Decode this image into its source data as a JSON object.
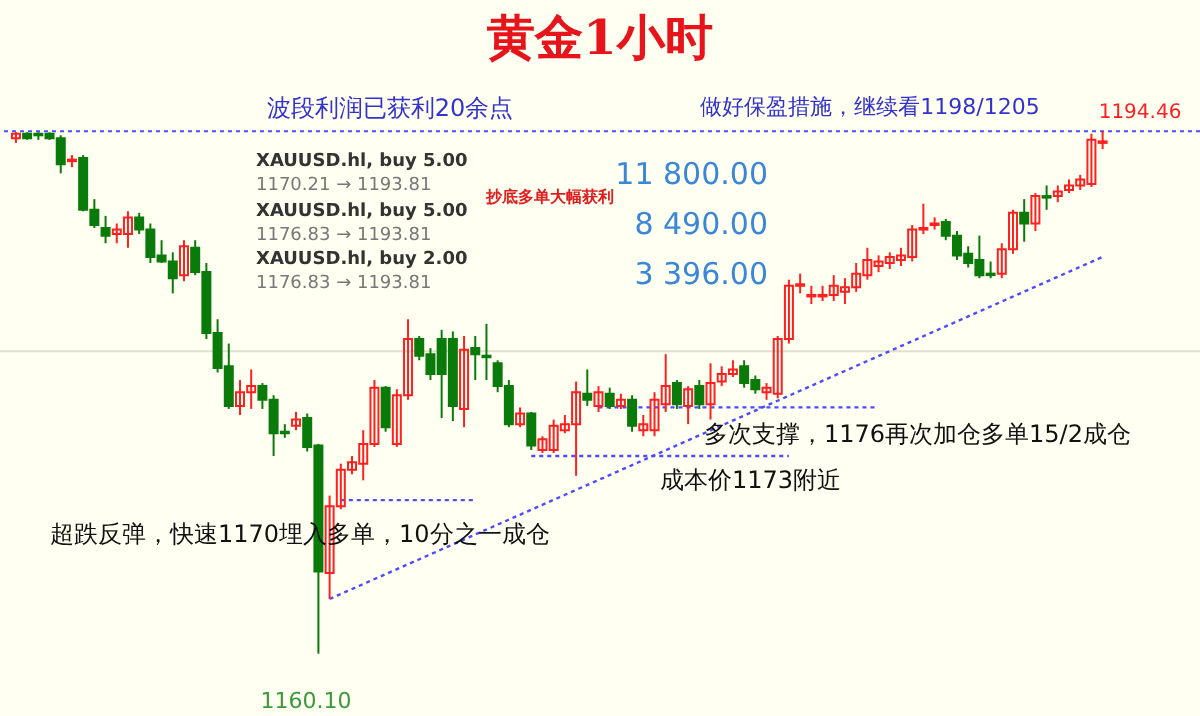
{
  "chart_data": {
    "type": "candlestick",
    "title": "黄金1小时",
    "categories": [
      null,
      null,
      null,
      null,
      null,
      null,
      null,
      null,
      null,
      null,
      null,
      null,
      null,
      null,
      null,
      null,
      null,
      null,
      null,
      null,
      null,
      null,
      null,
      null,
      null,
      null,
      null,
      null,
      null,
      null,
      null,
      null,
      null,
      null,
      null,
      null,
      null,
      null,
      null,
      null,
      null,
      null,
      null,
      null,
      null,
      null,
      null,
      null,
      null,
      null,
      null,
      null,
      null,
      null,
      null,
      null,
      null,
      null,
      null,
      null,
      null,
      null,
      null,
      null,
      null,
      null,
      null,
      null,
      null,
      null,
      null,
      null,
      null,
      null,
      null,
      null,
      null,
      null,
      null,
      null,
      null,
      null,
      null,
      null,
      null,
      null,
      null,
      null,
      null,
      null,
      null,
      null,
      null,
      null,
      null,
      null,
      null,
      null
    ],
    "ohlc": [
      [
        1194.0,
        1194.4,
        1193.7,
        1194.3
      ],
      [
        1194.3,
        1194.4,
        1193.9,
        1194.0
      ],
      [
        1194.3,
        1194.4,
        1193.9,
        1194.2
      ],
      [
        1194.3,
        1194.4,
        1193.9,
        1194.0
      ],
      [
        1194.0,
        1194.2,
        1191.7,
        1192.3
      ],
      [
        1192.5,
        1192.9,
        1192.1,
        1192.6
      ],
      [
        1192.7,
        1192.9,
        1189.2,
        1189.3
      ],
      [
        1189.3,
        1190.0,
        1188.1,
        1188.3
      ],
      [
        1188.1,
        1188.9,
        1187.1,
        1187.6
      ],
      [
        1187.7,
        1188.4,
        1187.1,
        1188.0
      ],
      [
        1187.7,
        1189.2,
        1186.8,
        1188.8
      ],
      [
        1188.8,
        1189.1,
        1187.7,
        1188.0
      ],
      [
        1188.0,
        1188.4,
        1185.8,
        1186.2
      ],
      [
        1186.3,
        1187.3,
        1185.8,
        1185.9
      ],
      [
        1185.9,
        1186.5,
        1183.8,
        1184.8
      ],
      [
        1185.0,
        1187.3,
        1184.6,
        1186.9
      ],
      [
        1186.8,
        1187.3,
        1185.0,
        1185.2
      ],
      [
        1185.2,
        1185.8,
        1180.8,
        1181.2
      ],
      [
        1181.2,
        1182.1,
        1178.6,
        1178.9
      ],
      [
        1179.0,
        1180.5,
        1176.2,
        1176.4
      ],
      [
        1176.4,
        1178.1,
        1175.8,
        1177.3
      ],
      [
        1177.3,
        1178.8,
        1176.2,
        1177.7
      ],
      [
        1177.7,
        1177.9,
        1176.2,
        1176.8
      ],
      [
        1176.8,
        1177.1,
        1173.1,
        1174.6
      ],
      [
        1174.7,
        1175.2,
        1174.3,
        1174.6
      ],
      [
        1175.1,
        1176.0,
        1174.8,
        1175.5
      ],
      [
        1175.6,
        1175.9,
        1173.4,
        1173.7
      ],
      [
        1173.8,
        1173.9,
        1160.1,
        1165.5
      ],
      [
        1165.4,
        1170.5,
        1163.7,
        1169.8
      ],
      [
        1169.8,
        1172.6,
        1169.6,
        1172.2
      ],
      [
        1172.2,
        1173.1,
        1171.9,
        1172.7
      ],
      [
        1172.6,
        1174.8,
        1171.5,
        1173.9
      ],
      [
        1173.9,
        1178.1,
        1173.7,
        1177.6
      ],
      [
        1177.6,
        1177.7,
        1174.7,
        1175.0
      ],
      [
        1173.9,
        1177.5,
        1173.7,
        1177.1
      ],
      [
        1177.1,
        1182.1,
        1176.8,
        1180.8
      ],
      [
        1180.8,
        1181.0,
        1179.4,
        1179.7
      ],
      [
        1179.8,
        1180.2,
        1178.1,
        1178.5
      ],
      [
        1180.8,
        1181.4,
        1175.6,
        1178.5
      ],
      [
        1180.8,
        1181.3,
        1175.4,
        1176.4
      ],
      [
        1176.2,
        1181.0,
        1175.0,
        1180.1
      ],
      [
        1180.2,
        1181.0,
        1178.1,
        1179.8
      ],
      [
        1179.7,
        1181.8,
        1178.1,
        1179.6
      ],
      [
        1179.2,
        1179.4,
        1177.3,
        1177.7
      ],
      [
        1177.7,
        1178.1,
        1175.0,
        1175.2
      ],
      [
        1175.2,
        1176.3,
        1175.0,
        1175.9
      ],
      [
        1175.9,
        1176.0,
        1173.5,
        1173.8
      ],
      [
        1173.5,
        1174.4,
        1173.3,
        1174.2
      ],
      [
        1173.5,
        1175.5,
        1173.3,
        1175.1
      ],
      [
        1174.8,
        1175.8,
        1174.6,
        1175.2
      ],
      [
        1175.2,
        1178.0,
        1171.8,
        1177.3
      ],
      [
        1177.2,
        1178.8,
        1176.4,
        1176.8
      ],
      [
        1176.4,
        1177.7,
        1176.0,
        1177.3
      ],
      [
        1177.2,
        1177.6,
        1176.2,
        1176.4
      ],
      [
        1176.4,
        1177.2,
        1176.2,
        1176.8
      ],
      [
        1176.8,
        1177.1,
        1174.7,
        1175.1
      ],
      [
        1174.8,
        1175.8,
        1174.4,
        1175.2
      ],
      [
        1174.8,
        1177.3,
        1174.4,
        1176.8
      ],
      [
        1176.5,
        1179.8,
        1176.0,
        1177.7
      ],
      [
        1177.9,
        1178.1,
        1176.2,
        1176.5
      ],
      [
        1176.4,
        1177.7,
        1175.2,
        1177.5
      ],
      [
        1177.7,
        1178.1,
        1176.2,
        1176.5
      ],
      [
        1176.5,
        1179.2,
        1175.5,
        1177.9
      ],
      [
        1178.0,
        1179.0,
        1177.7,
        1178.5
      ],
      [
        1178.5,
        1179.4,
        1178.3,
        1178.8
      ],
      [
        1179.0,
        1179.4,
        1177.6,
        1177.9
      ],
      [
        1178.1,
        1178.4,
        1177.2,
        1177.5
      ],
      [
        1177.3,
        1177.9,
        1176.8,
        1177.6
      ],
      [
        1177.2,
        1181.0,
        1176.9,
        1180.8
      ],
      [
        1180.8,
        1184.7,
        1180.5,
        1184.3
      ],
      [
        1184.3,
        1185.1,
        1183.8,
        1184.4
      ],
      [
        1183.6,
        1184.3,
        1183.1,
        1183.7
      ],
      [
        1183.6,
        1184.3,
        1183.3,
        1183.7
      ],
      [
        1183.7,
        1185.0,
        1183.3,
        1184.3
      ],
      [
        1183.9,
        1184.8,
        1183.1,
        1184.2
      ],
      [
        1184.2,
        1185.8,
        1183.9,
        1185.1
      ],
      [
        1185.0,
        1186.8,
        1184.7,
        1186.0
      ],
      [
        1185.6,
        1186.3,
        1185.2,
        1185.9
      ],
      [
        1185.8,
        1186.5,
        1185.4,
        1186.2
      ],
      [
        1186.0,
        1186.8,
        1185.6,
        1186.3
      ],
      [
        1186.2,
        1188.3,
        1185.9,
        1188.0
      ],
      [
        1188.0,
        1189.7,
        1187.7,
        1188.1
      ],
      [
        1188.3,
        1188.8,
        1188.0,
        1188.4
      ],
      [
        1188.5,
        1188.7,
        1187.3,
        1187.6
      ],
      [
        1187.6,
        1187.9,
        1186.0,
        1186.3
      ],
      [
        1186.4,
        1186.9,
        1185.5,
        1185.8
      ],
      [
        1186.0,
        1187.6,
        1184.8,
        1185.0
      ],
      [
        1185.1,
        1185.9,
        1184.8,
        1185.0
      ],
      [
        1185.1,
        1187.1,
        1184.8,
        1186.7
      ],
      [
        1186.7,
        1189.3,
        1186.4,
        1189.1
      ],
      [
        1189.1,
        1190.0,
        1187.2,
        1188.4
      ],
      [
        1188.4,
        1190.4,
        1187.9,
        1190.2
      ],
      [
        1190.2,
        1190.9,
        1189.3,
        1190.1
      ],
      [
        1190.2,
        1190.9,
        1189.8,
        1190.5
      ],
      [
        1190.6,
        1191.3,
        1190.4,
        1190.9
      ],
      [
        1190.9,
        1191.6,
        1190.6,
        1191.3
      ],
      [
        1191.0,
        1194.3,
        1190.8,
        1193.9
      ],
      [
        1193.7,
        1194.46,
        1193.3,
        1193.8
      ]
    ],
    "colors": [
      "#ff2020",
      "#0a7a0a",
      "#0a7a0a",
      "#0a7a0a",
      "#0a7a0a",
      "#ff2020",
      "#0a7a0a",
      "#0a7a0a",
      "#0a7a0a",
      "#ff2020",
      "#ff2020",
      "#0a7a0a",
      "#0a7a0a",
      "#0a7a0a",
      "#0a7a0a",
      "#ff2020",
      "#0a7a0a",
      "#0a7a0a",
      "#0a7a0a",
      "#0a7a0a",
      "#ff2020",
      "#ff2020",
      "#0a7a0a",
      "#0a7a0a",
      "#0a7a0a",
      "#ff2020",
      "#0a7a0a",
      "#0a7a0a",
      "#ff2020",
      "#ff2020",
      "#ff2020",
      "#ff2020",
      "#ff2020",
      "#0a7a0a",
      "#ff2020",
      "#ff2020",
      "#0a7a0a",
      "#0a7a0a",
      "#0a7a0a",
      "#0a7a0a",
      "#ff2020",
      "#0a7a0a",
      "#0a7a0a",
      "#0a7a0a",
      "#0a7a0a",
      "#ff2020",
      "#0a7a0a",
      "#ff2020",
      "#ff2020",
      "#ff2020",
      "#ff2020",
      "#0a7a0a",
      "#ff2020",
      "#0a7a0a",
      "#ff2020",
      "#0a7a0a",
      "#ff2020",
      "#ff2020",
      "#ff2020",
      "#0a7a0a",
      "#ff2020",
      "#0a7a0a",
      "#ff2020",
      "#ff2020",
      "#ff2020",
      "#0a7a0a",
      "#0a7a0a",
      "#ff2020",
      "#ff2020",
      "#ff2020",
      "#ff2020",
      "#ff2020",
      "#ff2020",
      "#ff2020",
      "#ff2020",
      "#ff2020",
      "#ff2020",
      "#ff2020",
      "#ff2020",
      "#ff2020",
      "#ff2020",
      "#ff2020",
      "#ff2020",
      "#0a7a0a",
      "#0a7a0a",
      "#0a7a0a",
      "#0a7a0a",
      "#0a7a0a",
      "#ff2020",
      "#ff2020",
      "#0a7a0a",
      "#ff2020",
      "#0a7a0a",
      "#ff2020",
      "#ff2020",
      "#ff2020",
      "#ff2020",
      "#ff2020"
    ],
    "series": [
      {
        "type": "line",
        "color": "#4b4bff",
        "line_style": "dotted",
        "values": [
          null,
          null,
          null,
          null,
          null,
          null,
          null,
          null,
          null,
          null,
          null,
          null,
          null,
          null,
          null,
          null,
          null,
          null,
          null,
          null,
          null,
          null,
          null,
          null,
          null,
          null,
          null,
          null,
          1163.7,
          null,
          null,
          null,
          null,
          null,
          null,
          null,
          null,
          null,
          null,
          null,
          null,
          null,
          null,
          null,
          null,
          null,
          null,
          null,
          null,
          null,
          null,
          null,
          null,
          null,
          null,
          null,
          null,
          null,
          null,
          null,
          null,
          null,
          null,
          null,
          null,
          null,
          null,
          null,
          null,
          null,
          null,
          null,
          null,
          null,
          null,
          null,
          null,
          null,
          null,
          null,
          null,
          null,
          null,
          null,
          null,
          null,
          null,
          null,
          null,
          null,
          null,
          null,
          null,
          null,
          null,
          null,
          null,
          1186.2
        ]
      },
      {
        "type": "line",
        "color": "#4b4bff",
        "line_style": "dotted",
        "values": [
          null,
          null,
          null,
          null,
          null,
          null,
          null,
          null,
          null,
          null,
          null,
          null,
          null,
          null,
          null,
          null,
          null,
          null,
          null,
          null,
          null,
          null,
          null,
          null,
          null,
          null,
          null,
          null,
          null,
          1170.2,
          null,
          null,
          null,
          null,
          null,
          null,
          null,
          null,
          null,
          null,
          null,
          1170.2,
          null,
          null,
          null,
          null,
          null,
          null,
          null,
          null,
          null,
          null,
          null,
          null,
          null,
          null,
          null,
          null,
          null,
          null,
          null,
          null,
          null,
          null,
          null,
          null,
          null,
          null,
          null,
          null,
          null,
          null,
          null,
          null,
          null,
          null,
          null,
          null,
          null,
          null,
          null,
          null,
          null,
          null,
          null,
          null,
          null,
          null,
          null,
          null,
          null,
          null,
          null,
          null,
          null,
          null,
          null,
          null
        ]
      },
      {
        "type": "line",
        "color": "#4b4bff",
        "line_style": "dotted",
        "values": [
          null,
          null,
          null,
          null,
          null,
          null,
          null,
          null,
          null,
          null,
          null,
          null,
          null,
          null,
          null,
          null,
          null,
          null,
          null,
          null,
          null,
          null,
          null,
          null,
          null,
          null,
          null,
          null,
          null,
          null,
          null,
          null,
          null,
          null,
          null,
          null,
          null,
          null,
          null,
          null,
          null,
          null,
          null,
          null,
          null,
          null,
          1173.1,
          null,
          null,
          null,
          null,
          null,
          null,
          null,
          null,
          null,
          null,
          null,
          null,
          null,
          null,
          null,
          null,
          null,
          null,
          null,
          null,
          null,
          null,
          1173.1,
          null,
          null,
          null,
          null,
          null,
          null,
          null,
          null,
          null,
          null,
          null,
          null,
          null,
          null,
          null,
          null,
          null,
          null,
          null,
          null,
          null,
          null,
          null,
          null,
          null,
          null,
          null,
          null
        ]
      },
      {
        "type": "line",
        "color": "#4b4bff",
        "line_style": "dotted",
        "values": [
          null,
          null,
          null,
          null,
          null,
          null,
          null,
          null,
          null,
          null,
          null,
          null,
          null,
          null,
          null,
          null,
          null,
          null,
          null,
          null,
          null,
          null,
          null,
          null,
          null,
          null,
          null,
          null,
          null,
          null,
          null,
          null,
          null,
          null,
          null,
          null,
          null,
          null,
          null,
          null,
          null,
          null,
          null,
          null,
          null,
          null,
          null,
          null,
          null,
          null,
          null,
          null,
          1176.3,
          null,
          null,
          null,
          null,
          null,
          null,
          null,
          null,
          null,
          null,
          null,
          null,
          null,
          null,
          null,
          null,
          null,
          null,
          null,
          null,
          null,
          null,
          null,
          null,
          1176.3,
          null,
          null,
          null,
          null,
          null,
          null,
          null,
          null,
          null,
          null,
          null,
          null,
          null,
          null,
          null,
          null,
          null,
          null,
          null,
          null
        ]
      }
    ],
    "ref_lines": [
      {
        "axis": "y",
        "value": 1194.46,
        "color": "#4b4bff",
        "line_style": "dotted"
      }
    ],
    "ylim": [
      1156.0,
      1203.1
    ],
    "yticks": [
      {
        "value": 1180,
        "label": null
      }
    ],
    "grid": "y",
    "annotations": [
      "波段利润已获利20余点",
      "做好保盈措施，继续看1198/1205",
      "1194.46",
      "XAUUSD.hl, buy 5.00",
      "1170.21 → 1193.81",
      "11 800.00",
      "抄底多单大幅获利",
      "XAUUSD.hl, buy 5.00",
      "1176.83 → 1193.81",
      "8 490.00",
      "XAUUSD.hl, buy 2.00",
      "1176.83 → 1193.81",
      "3 396.00",
      "超跌反弹，快速1170埋入多单，10分之一成仓",
      "多次支撑，1176再次加仓多单15/2成仓",
      "成本价1173附近",
      "1160.10"
    ]
  }
}
